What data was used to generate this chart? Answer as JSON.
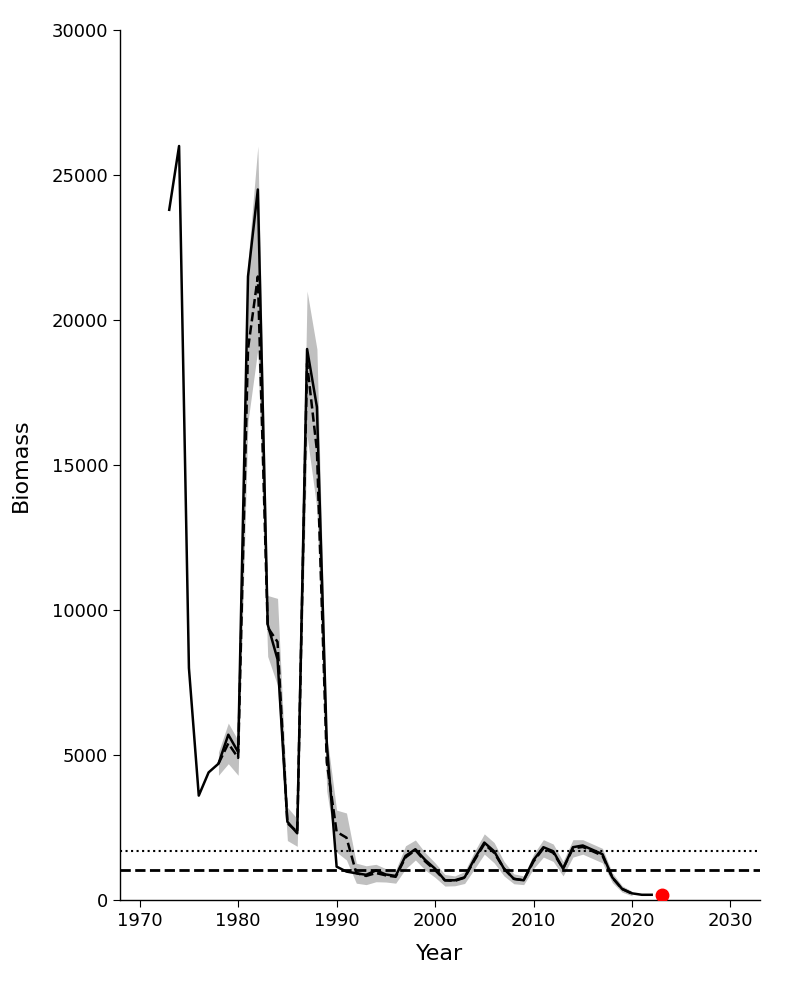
{
  "title": "",
  "xlabel": "Year",
  "ylabel": "Biomass",
  "xlim": [
    1968,
    2033
  ],
  "ylim": [
    0,
    30000
  ],
  "yticks": [
    0,
    5000,
    10000,
    15000,
    20000,
    25000,
    30000
  ],
  "xticks": [
    1970,
    1980,
    1990,
    2000,
    2010,
    2020,
    2030
  ],
  "background_color": "#ffffff",
  "hline_dotted_y": 1700,
  "hline_dashed_y": 1050,
  "red_dot_x": 2023,
  "red_dot_y": 180,
  "solid_line_color": "#000000",
  "dashed_line_color": "#000000",
  "ci_color": "#c0c0c0",
  "years": [
    1973,
    1974,
    1975,
    1976,
    1977,
    1978,
    1979,
    1980,
    1981,
    1982,
    1983,
    1984,
    1985,
    1986,
    1987,
    1988,
    1989,
    1990,
    1991,
    1992,
    1993,
    1994,
    1995,
    1996,
    1997,
    1998,
    1999,
    2000,
    2001,
    2002,
    2003,
    2004,
    2005,
    2006,
    2007,
    2008,
    2009,
    2010,
    2011,
    2012,
    2013,
    2014,
    2015,
    2016,
    2017,
    2018,
    2019,
    2020,
    2021,
    2022
  ],
  "solid_values": [
    23800,
    26000,
    8000,
    3600,
    4400,
    4700,
    5700,
    5100,
    21500,
    24500,
    9500,
    8300,
    2700,
    2300,
    19000,
    17000,
    5400,
    1150,
    980,
    920,
    870,
    1020,
    880,
    830,
    1520,
    1750,
    1380,
    1080,
    680,
    680,
    780,
    1420,
    1980,
    1680,
    1080,
    730,
    680,
    1380,
    1820,
    1680,
    1080,
    1820,
    1880,
    1730,
    1580,
    780,
    380,
    230,
    180,
    180
  ],
  "dashed_values": [
    null,
    null,
    null,
    null,
    null,
    4700,
    5400,
    4900,
    19000,
    21500,
    9400,
    8900,
    2650,
    2350,
    18500,
    15500,
    4750,
    2350,
    2150,
    930,
    830,
    930,
    850,
    800,
    1470,
    1720,
    1330,
    1030,
    680,
    660,
    770,
    1370,
    1930,
    1630,
    1080,
    730,
    680,
    1330,
    1780,
    1630,
    1080,
    1780,
    1830,
    1680,
    1530,
    770,
    380,
    220,
    null,
    null
  ],
  "ci_upper": [
    null,
    null,
    null,
    null,
    null,
    5100,
    6100,
    5500,
    22000,
    26000,
    10500,
    10400,
    3200,
    2800,
    21000,
    19000,
    5700,
    3100,
    3000,
    1270,
    1180,
    1230,
    1080,
    1030,
    1870,
    2070,
    1630,
    1280,
    880,
    830,
    980,
    1670,
    2280,
    1980,
    1330,
    900,
    830,
    1580,
    2080,
    1930,
    1330,
    2080,
    2080,
    1930,
    1780,
    940,
    490,
    300,
    null,
    null
  ],
  "ci_lower": [
    null,
    null,
    null,
    null,
    null,
    4300,
    4700,
    4300,
    16500,
    19000,
    8400,
    7400,
    2050,
    1850,
    16000,
    13500,
    3750,
    1650,
    1380,
    580,
    530,
    630,
    620,
    580,
    1070,
    1380,
    1030,
    780,
    480,
    490,
    570,
    1070,
    1580,
    1280,
    830,
    560,
    530,
    1080,
    1480,
    1330,
    830,
    1480,
    1580,
    1430,
    1280,
    600,
    270,
    145,
    null,
    null
  ]
}
